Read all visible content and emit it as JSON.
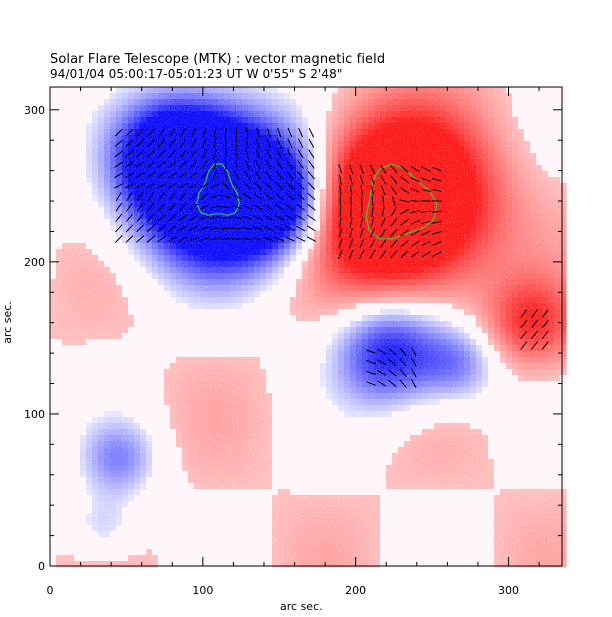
{
  "chart_data": {
    "type": "heatmap",
    "title": "Solar Flare Telescope (MTK) : vector magnetic field",
    "subtitle": "94/01/04  05:00:17-05:01:23 UT    W 0'55\"  S 2'48\"",
    "xlabel": "arc sec.",
    "ylabel": "arc sec.",
    "xlim": [
      0,
      335
    ],
    "ylim": [
      0,
      315
    ],
    "x_ticks": [
      0,
      100,
      200,
      300
    ],
    "y_ticks": [
      0,
      100,
      200,
      300
    ],
    "grid": false,
    "colors": {
      "positive_polarity": "#ff2020",
      "negative_polarity": "#1a1aff",
      "contour": "#33cc33",
      "vectors": "#000000"
    },
    "polarity_regions": [
      {
        "polarity": "negative",
        "x": 108,
        "y": 250,
        "strength": 1.0
      },
      {
        "polarity": "negative",
        "x": 80,
        "y": 270,
        "strength": 0.5
      },
      {
        "polarity": "negative",
        "x": 150,
        "y": 240,
        "strength": 0.5
      },
      {
        "polarity": "positive",
        "x": 228,
        "y": 238,
        "strength": 1.0
      },
      {
        "polarity": "negative",
        "x": 222,
        "y": 140,
        "strength": 0.55
      },
      {
        "polarity": "negative",
        "x": 268,
        "y": 132,
        "strength": 0.3
      },
      {
        "polarity": "negative",
        "x": 45,
        "y": 70,
        "strength": 0.3
      },
      {
        "polarity": "negative",
        "x": 35,
        "y": 25,
        "strength": 0.2
      },
      {
        "polarity": "positive",
        "x": 315,
        "y": 160,
        "strength": 0.35
      }
    ],
    "contours": [
      {
        "center": [
          110,
          245
        ],
        "polarity": "negative"
      },
      {
        "center": [
          228,
          238
        ],
        "polarity": "positive"
      }
    ]
  }
}
